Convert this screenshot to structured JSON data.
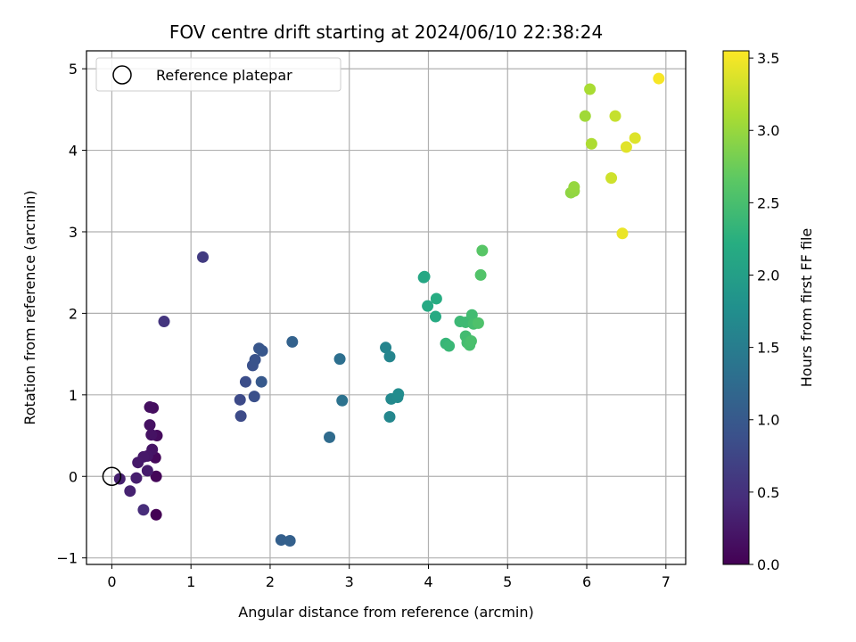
{
  "chart_data": {
    "type": "scatter",
    "title": "FOV centre drift starting at 2024/06/10 22:38:24",
    "xlabel": "Angular distance from reference (arcmin)",
    "ylabel": "Rotation from reference (arcmin)",
    "xlim": [
      -0.32,
      7.25
    ],
    "ylim": [
      -1.08,
      5.22
    ],
    "xticks": [
      0,
      1,
      2,
      3,
      4,
      5,
      6,
      7
    ],
    "yticks": [
      -1,
      0,
      1,
      2,
      3,
      4,
      5
    ],
    "grid": true,
    "legend": {
      "placement": "top-left",
      "entries": [
        "Reference platepar"
      ]
    },
    "reference_point": {
      "x": 0,
      "y": 0,
      "label": "Reference platepar"
    },
    "colorbar": {
      "label": "Hours from first FF file",
      "colormap": "viridis",
      "range": [
        0.0,
        3.55
      ],
      "ticks": [
        "0.0",
        "0.5",
        "1.0",
        "1.5",
        "2.0",
        "2.5",
        "3.0",
        "3.5"
      ]
    },
    "points": [
      {
        "x": 0.56,
        "y": -0.47,
        "h": 0.0
      },
      {
        "x": 0.56,
        "y": 0.0,
        "h": 0.05
      },
      {
        "x": 0.55,
        "y": 0.23,
        "h": 0.08
      },
      {
        "x": 0.57,
        "y": 0.5,
        "h": 0.1
      },
      {
        "x": 0.52,
        "y": 0.84,
        "h": 0.12
      },
      {
        "x": 0.48,
        "y": 0.85,
        "h": 0.14
      },
      {
        "x": 0.48,
        "y": 0.63,
        "h": 0.16
      },
      {
        "x": 0.5,
        "y": 0.51,
        "h": 0.18
      },
      {
        "x": 0.51,
        "y": 0.33,
        "h": 0.2
      },
      {
        "x": 0.45,
        "y": 0.25,
        "h": 0.22
      },
      {
        "x": 0.4,
        "y": 0.24,
        "h": 0.24
      },
      {
        "x": 0.33,
        "y": 0.17,
        "h": 0.26
      },
      {
        "x": 0.45,
        "y": 0.07,
        "h": 0.28
      },
      {
        "x": 0.31,
        "y": -0.02,
        "h": 0.3
      },
      {
        "x": 0.1,
        "y": -0.03,
        "h": 0.32
      },
      {
        "x": 0.23,
        "y": -0.18,
        "h": 0.34
      },
      {
        "x": 0.4,
        "y": -0.41,
        "h": 0.45
      },
      {
        "x": 0.66,
        "y": 1.9,
        "h": 0.55
      },
      {
        "x": 1.15,
        "y": 2.69,
        "h": 0.62
      },
      {
        "x": 1.62,
        "y": 0.94,
        "h": 0.8
      },
      {
        "x": 1.63,
        "y": 0.74,
        "h": 0.82
      },
      {
        "x": 1.69,
        "y": 1.16,
        "h": 0.85
      },
      {
        "x": 1.8,
        "y": 0.98,
        "h": 0.88
      },
      {
        "x": 1.78,
        "y": 1.36,
        "h": 0.9
      },
      {
        "x": 1.81,
        "y": 1.43,
        "h": 0.92
      },
      {
        "x": 1.86,
        "y": 1.57,
        "h": 0.95
      },
      {
        "x": 1.9,
        "y": 1.54,
        "h": 0.97
      },
      {
        "x": 1.89,
        "y": 1.16,
        "h": 1.0
      },
      {
        "x": 2.14,
        "y": -0.78,
        "h": 1.08
      },
      {
        "x": 2.25,
        "y": -0.79,
        "h": 1.1
      },
      {
        "x": 2.28,
        "y": 1.65,
        "h": 1.12
      },
      {
        "x": 2.75,
        "y": 0.48,
        "h": 1.25
      },
      {
        "x": 2.88,
        "y": 1.44,
        "h": 1.3
      },
      {
        "x": 2.91,
        "y": 0.93,
        "h": 1.35
      },
      {
        "x": 3.46,
        "y": 1.58,
        "h": 1.6
      },
      {
        "x": 3.51,
        "y": 1.47,
        "h": 1.62
      },
      {
        "x": 3.51,
        "y": 0.73,
        "h": 1.65
      },
      {
        "x": 3.53,
        "y": 0.95,
        "h": 1.68
      },
      {
        "x": 3.61,
        "y": 0.97,
        "h": 1.7
      },
      {
        "x": 3.62,
        "y": 1.01,
        "h": 1.72
      },
      {
        "x": 3.94,
        "y": 2.44,
        "h": 2.1
      },
      {
        "x": 3.95,
        "y": 2.45,
        "h": 2.12
      },
      {
        "x": 3.99,
        "y": 2.09,
        "h": 2.15
      },
      {
        "x": 4.09,
        "y": 1.96,
        "h": 2.18
      },
      {
        "x": 4.1,
        "y": 2.18,
        "h": 2.2
      },
      {
        "x": 4.22,
        "y": 1.63,
        "h": 2.35
      },
      {
        "x": 4.26,
        "y": 1.6,
        "h": 2.38
      },
      {
        "x": 4.4,
        "y": 1.9,
        "h": 2.4
      },
      {
        "x": 4.47,
        "y": 1.89,
        "h": 2.42
      },
      {
        "x": 4.47,
        "y": 1.72,
        "h": 2.45
      },
      {
        "x": 4.49,
        "y": 1.64,
        "h": 2.47
      },
      {
        "x": 4.52,
        "y": 1.61,
        "h": 2.5
      },
      {
        "x": 4.54,
        "y": 1.66,
        "h": 2.52
      },
      {
        "x": 4.55,
        "y": 1.98,
        "h": 2.45
      },
      {
        "x": 4.57,
        "y": 1.87,
        "h": 2.48
      },
      {
        "x": 4.63,
        "y": 1.88,
        "h": 2.55
      },
      {
        "x": 4.66,
        "y": 2.47,
        "h": 2.58
      },
      {
        "x": 4.68,
        "y": 2.77,
        "h": 2.62
      },
      {
        "x": 5.8,
        "y": 3.48,
        "h": 2.95
      },
      {
        "x": 5.84,
        "y": 3.5,
        "h": 2.97
      },
      {
        "x": 5.84,
        "y": 3.55,
        "h": 2.99
      },
      {
        "x": 5.98,
        "y": 4.42,
        "h": 3.05
      },
      {
        "x": 6.04,
        "y": 4.75,
        "h": 3.1
      },
      {
        "x": 6.06,
        "y": 4.08,
        "h": 3.12
      },
      {
        "x": 6.31,
        "y": 3.66,
        "h": 3.3
      },
      {
        "x": 6.36,
        "y": 4.42,
        "h": 3.25
      },
      {
        "x": 6.45,
        "y": 2.98,
        "h": 3.45
      },
      {
        "x": 6.5,
        "y": 4.04,
        "h": 3.4
      },
      {
        "x": 6.61,
        "y": 4.15,
        "h": 3.38
      },
      {
        "x": 6.91,
        "y": 4.88,
        "h": 3.52
      }
    ]
  }
}
